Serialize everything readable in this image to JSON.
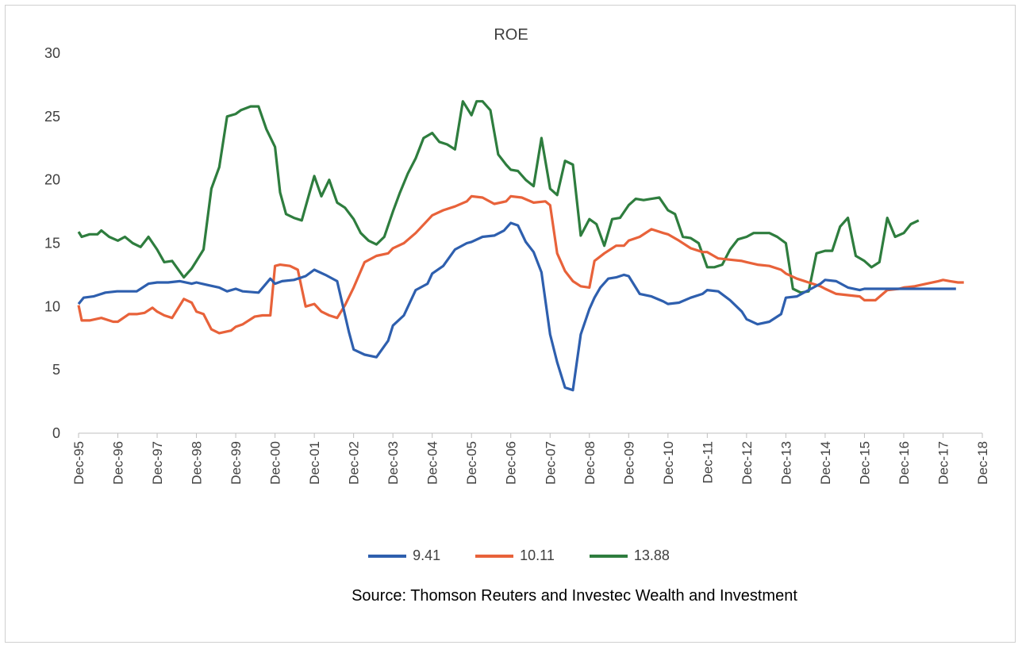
{
  "chart_data": {
    "type": "line",
    "title": "ROE",
    "source": "Source: Thomson Reuters and Investec Wealth and Investment",
    "ylim": [
      0,
      30
    ],
    "yticks": [
      0,
      5,
      10,
      15,
      20,
      25,
      30
    ],
    "x_tick_labels": [
      "Dec-95",
      "Dec-96",
      "Dec-97",
      "Dec-98",
      "Dec-99",
      "Dec-00",
      "Dec-01",
      "Dec-02",
      "Dec-03",
      "Dec-04",
      "Dec-05",
      "Dec-06",
      "Dec-07",
      "Dec-08",
      "Dec-09",
      "Dec-10",
      "Dec-11",
      "Dec-12",
      "Dec-13",
      "Dec-14",
      "Dec-15",
      "Dec-16",
      "Dec-17",
      "Dec-18"
    ],
    "grid": false,
    "legend_position": "bottom",
    "series": [
      {
        "name": "9.41",
        "color": "#2e5fae",
        "x": [
          1995.92,
          1996.1,
          1996.4,
          1996.5,
          1996.7,
          1996.9,
          1997.2,
          1997.5,
          1997.8,
          1998.0,
          1998.3,
          1998.6,
          1998.9,
          1999.1,
          1999.3,
          1999.5,
          1999.8,
          2000.0,
          2000.1,
          2000.5,
          2000.8,
          2000.92,
          2001.2,
          2001.4,
          2001.6,
          2001.9,
          2002.2,
          2002.5,
          2002.8,
          2002.92,
          2003.2,
          2003.5,
          2003.8,
          2003.92,
          2004.2,
          2004.5,
          2004.8,
          2004.92,
          2005.2,
          2005.5,
          2005.8,
          2005.92,
          2006.2,
          2006.5,
          2006.8,
          2007.0,
          2007.2,
          2007.4,
          2007.7,
          2007.92,
          2008.2,
          2008.4,
          2008.6,
          2008.8,
          2008.92,
          2009.0,
          2009.2,
          2009.4,
          2009.6,
          2009.8,
          2009.92,
          2010.2,
          2010.5,
          2010.8,
          2010.92,
          2011.2,
          2011.5,
          2011.8,
          2011.92,
          2012.2,
          2012.5,
          2012.8,
          2012.92,
          2013.2,
          2013.5,
          2013.8,
          2013.92,
          2014.2,
          2014.5,
          2014.8,
          2014.92,
          2015.2,
          2015.5,
          2015.8,
          2015.92,
          2016.2,
          2016.5,
          2016.8,
          2016.92,
          2017.2,
          2017.5,
          2017.8,
          2017.92,
          2018.2,
          2018.4
        ],
        "values": [
          10.2,
          10.7,
          11.0,
          11.2,
          11.2,
          11.3,
          11.8,
          11.9,
          12.0,
          11.9,
          11.7,
          11.5,
          11.2,
          11.1,
          11.2,
          12.3,
          11.8,
          12.0,
          12.1,
          12.4,
          13.0,
          12.8,
          12.0,
          8.0,
          6.6,
          6.2,
          6.0,
          7.5,
          8.5,
          9.4,
          11.5,
          11.8,
          12.8,
          13.3,
          14.5,
          14.9,
          15.1,
          15.5,
          15.6,
          15.7,
          15.9,
          16.4,
          16.7,
          15.1,
          14.3,
          12.7,
          7.8,
          5.6,
          3.6,
          3.4,
          7.8,
          9.3,
          10.7,
          11.5,
          12.2,
          12.4,
          12.5,
          12.3,
          11.0,
          10.8,
          10.3,
          10.2,
          10.3,
          10.7,
          11.0,
          11.2,
          11.3,
          11.1,
          10.5,
          10.0,
          9.3,
          9.0,
          8.6,
          8.9,
          9.5,
          10.8,
          11.0,
          11.1,
          11.4,
          12.0,
          12.1,
          11.4,
          11.4,
          11.4,
          11.4,
          11.4,
          11.4,
          11.4,
          11.4,
          11.4,
          11.4,
          11.4,
          11.4,
          11.4,
          11.4
        ],
        "note_truncate": true
      },
      {
        "name": "10.11",
        "color": "#e8623a",
        "x": [],
        "values": []
      },
      {
        "name": "13.88",
        "color": "#2e7d3e",
        "x": [],
        "values": []
      }
    ]
  }
}
